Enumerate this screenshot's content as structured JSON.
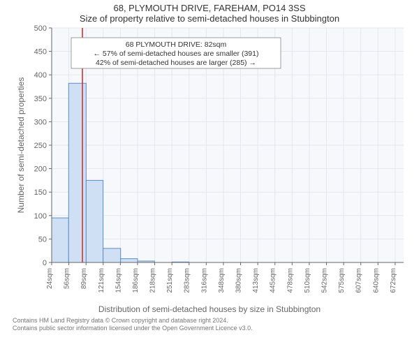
{
  "titles": {
    "line1": "68, PLYMOUTH DRIVE, FAREHAM, PO14 3SS",
    "line2": "Size of property relative to semi-detached houses in Stubbington"
  },
  "ylabel": "Number of semi-detached properties",
  "xlabel": "Distribution of semi-detached houses by size in Stubbington",
  "footer": {
    "line1": "Contains HM Land Registry data © Crown copyright and database right 2024.",
    "line2": "Contains public sector information licensed under the Open Government Licence v3.0."
  },
  "chart": {
    "type": "histogram",
    "background_color": "#f6f8fb",
    "grid_color": "#e3e7ee",
    "axis_color": "#666666",
    "bar_fill": "#cfe0f4",
    "bar_stroke": "#5a8ec9",
    "marker_line_color": "#cc3333",
    "marker_value": 82,
    "ylim": [
      0,
      500
    ],
    "ytick_step": 50,
    "xlim": [
      24,
      688
    ],
    "xtick_start": 24,
    "xtick_step": 32.4,
    "xtick_unit": "sqm",
    "xtick_count": 21,
    "label_fontsize": 12,
    "tick_fontsize": 11,
    "bar_bin_width": 32,
    "bars": [
      {
        "x0": 24,
        "x1": 56,
        "count": 95
      },
      {
        "x0": 56,
        "x1": 89,
        "count": 382
      },
      {
        "x0": 89,
        "x1": 121,
        "count": 175
      },
      {
        "x0": 121,
        "x1": 154,
        "count": 30
      },
      {
        "x0": 154,
        "x1": 186,
        "count": 8
      },
      {
        "x0": 186,
        "x1": 218,
        "count": 3
      },
      {
        "x0": 218,
        "x1": 251,
        "count": 0
      },
      {
        "x0": 251,
        "x1": 283,
        "count": 1
      },
      {
        "x0": 283,
        "x1": 316,
        "count": 0
      }
    ]
  },
  "annotation": {
    "line1": "68 PLYMOUTH DRIVE: 82sqm",
    "line2": "← 57% of semi-detached houses are smaller (391)",
    "line3": "42% of semi-detached houses are larger (285) →"
  }
}
